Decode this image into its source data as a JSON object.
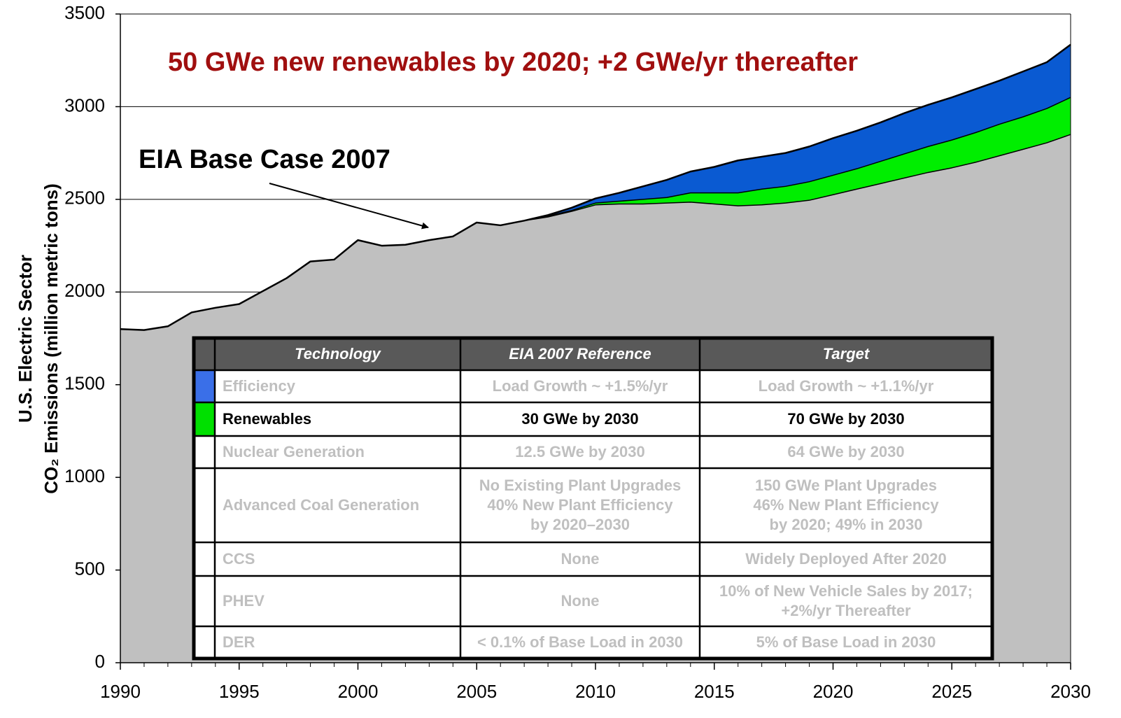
{
  "chart_data": {
    "type": "stacked_area",
    "title": "50 GWe new renewables by 2020; +2 GWe/yr thereafter",
    "title_color": "#a00f0f",
    "annotation": "EIA Base Case 2007",
    "ylabel": [
      "U.S. Electric Sector",
      "CO₂ Emissions (million metric tons)"
    ],
    "x": [
      1990,
      1991,
      1992,
      1993,
      1994,
      1995,
      1996,
      1997,
      1998,
      1999,
      2000,
      2001,
      2002,
      2003,
      2004,
      2005,
      2006,
      2007,
      2008,
      2009,
      2010,
      2011,
      2012,
      2013,
      2014,
      2015,
      2016,
      2017,
      2018,
      2019,
      2020,
      2021,
      2022,
      2023,
      2024,
      2025,
      2026,
      2027,
      2028,
      2029,
      2030
    ],
    "series": [
      {
        "color": "#c0c0c0",
        "values": [
          1800,
          1795,
          1815,
          1890,
          1915,
          1935,
          2005,
          2075,
          2165,
          2175,
          2280,
          2250,
          2255,
          2280,
          2300,
          2375,
          2360,
          2385,
          2405,
          2435,
          2470,
          2475,
          2475,
          2480,
          2485,
          2475,
          2465,
          2470,
          2480,
          2495,
          2525,
          2555,
          2585,
          2615,
          2645,
          2670,
          2700,
          2735,
          2770,
          2805,
          2850
        ]
      },
      {
        "color": "#00ee00",
        "values": [
          0,
          0,
          0,
          0,
          0,
          0,
          0,
          0,
          0,
          0,
          0,
          0,
          0,
          0,
          0,
          0,
          0,
          0,
          5,
          5,
          10,
          15,
          25,
          30,
          50,
          60,
          70,
          85,
          90,
          100,
          105,
          110,
          120,
          130,
          140,
          150,
          160,
          170,
          175,
          185,
          200
        ]
      },
      {
        "color": "#0a5ad2",
        "values": [
          0,
          0,
          0,
          0,
          0,
          0,
          0,
          0,
          0,
          0,
          0,
          0,
          0,
          0,
          0,
          0,
          0,
          0,
          5,
          15,
          25,
          45,
          70,
          95,
          115,
          140,
          175,
          175,
          180,
          190,
          200,
          205,
          210,
          220,
          225,
          230,
          235,
          235,
          245,
          250,
          285
        ]
      }
    ],
    "xlim": [
      1990,
      2030
    ],
    "xticks": [
      1990,
      1995,
      2000,
      2005,
      2010,
      2015,
      2020,
      2025,
      2030
    ],
    "ylim": [
      0,
      3500
    ],
    "yticks": [
      0,
      500,
      1000,
      1500,
      2000,
      2500,
      3000,
      3500
    ],
    "grid": true
  },
  "table": {
    "header": [
      "Technology",
      "EIA 2007 Reference",
      "Target"
    ],
    "rows": [
      {
        "swatch": "#3a6fe8",
        "cells": [
          [
            "Efficiency"
          ],
          [
            "Load Growth ~ +1.5%/yr"
          ],
          [
            "Load Growth ~ +1.1%/yr"
          ]
        ]
      },
      {
        "swatch": "#00e000",
        "text_color": "#000000",
        "cells": [
          [
            "Renewables"
          ],
          [
            "30 GWe by 2030"
          ],
          [
            "70 GWe by 2030"
          ]
        ]
      },
      {
        "cells": [
          [
            "Nuclear Generation"
          ],
          [
            "12.5 GWe by 2030"
          ],
          [
            "64 GWe by 2030"
          ]
        ]
      },
      {
        "cells": [
          [
            "Advanced Coal Generation"
          ],
          [
            "No Existing Plant Upgrades",
            "40% New Plant Efficiency",
            "by 2020–2030"
          ],
          [
            "150 GWe Plant Upgrades",
            "46% New Plant Efficiency",
            "by 2020; 49% in 2030"
          ]
        ]
      },
      {
        "cells": [
          [
            "CCS"
          ],
          [
            "None"
          ],
          [
            "Widely Deployed After 2020"
          ]
        ]
      },
      {
        "cells": [
          [
            "PHEV"
          ],
          [
            "None"
          ],
          [
            "10% of New Vehicle Sales by 2017;",
            "+2%/yr Thereafter"
          ]
        ]
      },
      {
        "cells": [
          [
            "DER"
          ],
          [
            "< 0.1% of Base Load in 2030"
          ],
          [
            "5% of Base Load in 2030"
          ]
        ]
      }
    ]
  }
}
